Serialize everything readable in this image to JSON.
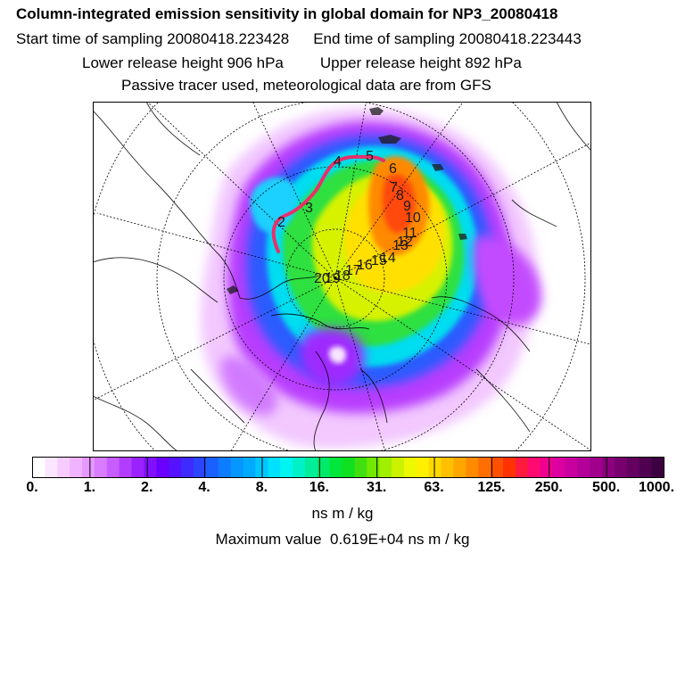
{
  "header": {
    "title": "Column-integrated emission sensitivity in global domain for NP3_20080418",
    "start_label": "Start time of sampling 20080418.223428",
    "end_label": "End time of sampling 20080418.223443",
    "lower_label": "Lower release height  906 hPa",
    "upper_label": "Upper release height  892 hPa",
    "tracer_note": "Passive tracer used, meteorological data are from GFS"
  },
  "map": {
    "track_labels": [
      "2",
      "3",
      "4",
      "5",
      "6",
      "7",
      "8",
      "9",
      "10",
      "11",
      "12",
      "13",
      "14",
      "15",
      "16",
      "17",
      "18",
      "19",
      "20"
    ],
    "track_color": "#e8306a"
  },
  "colorbar": {
    "colors": [
      "#ffffff",
      "#fbe6ff",
      "#f6ccff",
      "#f0b3ff",
      "#e699ff",
      "#d97cff",
      "#c75cff",
      "#b33dff",
      "#9a22ff",
      "#8210ff",
      "#6a00ff",
      "#5512ff",
      "#3d2bff",
      "#2a44ff",
      "#1a60ff",
      "#0e7cff",
      "#0696ff",
      "#00aaff",
      "#00c6ff",
      "#00e0ff",
      "#00f5f0",
      "#00f0c8",
      "#00ee9a",
      "#00ea6a",
      "#00e63a",
      "#10e020",
      "#40e010",
      "#70e800",
      "#a0ee00",
      "#ccf200",
      "#eef800",
      "#fff000",
      "#ffd800",
      "#ffc000",
      "#ffa600",
      "#ff8a00",
      "#ff6e00",
      "#ff5000",
      "#ff3200",
      "#ff1a40",
      "#ff0a70",
      "#f00090",
      "#dc00a0",
      "#c800a0",
      "#b40098",
      "#a0008c",
      "#8c007e",
      "#78006e",
      "#640060",
      "#500050",
      "#3c0040"
    ],
    "tick_labels": [
      "0.",
      "1.",
      "2.",
      "4.",
      "8.",
      "16.",
      "31.",
      "63.",
      "125.",
      "250.",
      "500.",
      "1000."
    ]
  },
  "unit_label": "ns m / kg",
  "max_label": "Maximum value",
  "max_value": "0.619E+04 ns m / kg"
}
